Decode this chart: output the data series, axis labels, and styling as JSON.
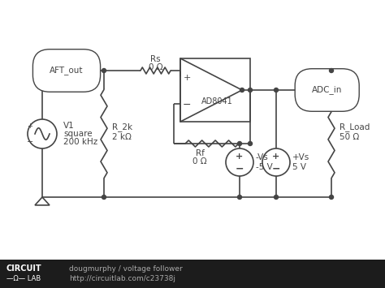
{
  "bg_color": "#ffffff",
  "footer_bg": "#1c1c1c",
  "footer_text1": "dougmurphy / voltage follower",
  "footer_text2": "http://circuitlab.com/c23738j",
  "circuit_color": "#444444",
  "aft_label": "AFT_out",
  "adc_label": "ADC_in",
  "op_amp_label": "AD8041",
  "v1_label1": "V1",
  "v1_label2": "square",
  "v1_label3": "200 kHz",
  "r2k_label1": "R_2k",
  "r2k_label2": "2 kΩ",
  "rs_label1": "Rs",
  "rs_label2": "0 Ω",
  "rf_label1": "Rf",
  "rf_label2": "0 Ω",
  "vs_neg_label1": "-Vs",
  "vs_neg_label2": "-5 V",
  "vs_pos_label1": "+Vs",
  "vs_pos_label2": "5 V",
  "rload_label1": "R_Load",
  "rload_label2": "50 Ω"
}
